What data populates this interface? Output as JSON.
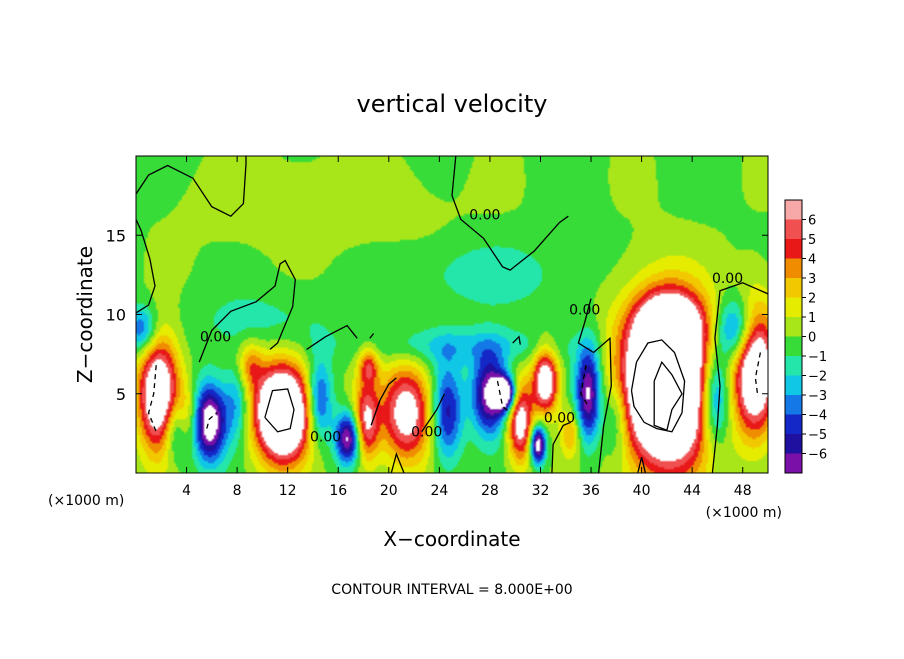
{
  "chart_data": {
    "type": "heatmap",
    "title": "vertical velocity",
    "xlabel": "X−coordinate",
    "ylabel": "Z−coordinate",
    "x_unit_left": "(×1000 m)",
    "x_unit_right": "(×1000 m)",
    "footer": "CONTOUR INTERVAL = 8.000E+00",
    "xlim": [
      0,
      50
    ],
    "ylim": [
      0,
      20
    ],
    "x_ticks": [
      4,
      8,
      12,
      16,
      20,
      24,
      28,
      32,
      36,
      40,
      44,
      48
    ],
    "y_ticks": [
      5,
      10,
      15
    ],
    "colorbar": {
      "labels": [
        "6",
        "5",
        "4",
        "3",
        "2",
        "1",
        "0",
        "−1",
        "−2",
        "−3",
        "−4",
        "−5",
        "−6"
      ],
      "colors": [
        "#f7a8a8",
        "#f05050",
        "#e81818",
        "#f08c00",
        "#f2c800",
        "#e6ec00",
        "#a8e61a",
        "#38dc38",
        "#24e6aa",
        "#10c8e6",
        "#1478e6",
        "#1428c8",
        "#2010a0",
        "#7a10a8"
      ]
    },
    "contour_labels": [
      {
        "text": "0.00",
        "x": 27.6,
        "y": 16.0
      },
      {
        "text": "0.00",
        "x": 46.8,
        "y": 12.0
      },
      {
        "text": "0.00",
        "x": 35.5,
        "y": 10.0
      },
      {
        "text": "0.00",
        "x": 6.3,
        "y": 8.3
      },
      {
        "text": "0.00",
        "x": 15.0,
        "y": 2.0
      },
      {
        "text": "0.00",
        "x": 23.0,
        "y": 2.3
      },
      {
        "text": "0.00",
        "x": 33.5,
        "y": 3.2
      }
    ],
    "features": [
      {
        "x": 1.8,
        "y": 5.0,
        "v": 9,
        "rx": 1.6,
        "ry": 3.5
      },
      {
        "x": 49.0,
        "y": 6.5,
        "v": 9,
        "rx": 1.6,
        "ry": 4.0
      },
      {
        "x": 42.0,
        "y": 5.5,
        "v": 14,
        "rx": 3.5,
        "ry": 5.0
      },
      {
        "x": 42.2,
        "y": 9.3,
        "v": 6,
        "rx": 2.5,
        "ry": 2.0
      },
      {
        "x": 11.6,
        "y": 3.8,
        "v": 12,
        "rx": 2.2,
        "ry": 3.0
      },
      {
        "x": 5.8,
        "y": 3.2,
        "v": -8,
        "rx": 1.3,
        "ry": 2.4
      },
      {
        "x": 4.0,
        "y": 3.5,
        "v": 3,
        "rx": 1.0,
        "ry": 2.0
      },
      {
        "x": 3.2,
        "y": 2.8,
        "v": -4,
        "rx": 1.0,
        "ry": 2.0
      },
      {
        "x": 8.0,
        "y": 4.5,
        "v": -3,
        "rx": 1.0,
        "ry": 2.5
      },
      {
        "x": 9.0,
        "y": 6.8,
        "v": 3,
        "rx": 1.0,
        "ry": 1.5
      },
      {
        "x": 14.5,
        "y": 4.5,
        "v": -5,
        "rx": 1.0,
        "ry": 2.5
      },
      {
        "x": 16.8,
        "y": 2.2,
        "v": -7,
        "rx": 1.0,
        "ry": 1.6
      },
      {
        "x": 18.2,
        "y": 3.2,
        "v": 6,
        "rx": 1.0,
        "ry": 2.5
      },
      {
        "x": 18.4,
        "y": 6.8,
        "v": 4,
        "rx": 0.8,
        "ry": 1.2
      },
      {
        "x": 21.4,
        "y": 3.8,
        "v": 7,
        "rx": 2.0,
        "ry": 3.0
      },
      {
        "x": 24.6,
        "y": 3.8,
        "v": -5,
        "rx": 1.2,
        "ry": 3.0
      },
      {
        "x": 28.0,
        "y": 5.0,
        "v": -7,
        "rx": 1.4,
        "ry": 2.5
      },
      {
        "x": 29.2,
        "y": 5.0,
        "v": -9,
        "rx": 0.8,
        "ry": 1.0
      },
      {
        "x": 30.4,
        "y": 3.2,
        "v": 7,
        "rx": 1.0,
        "ry": 2.5
      },
      {
        "x": 32.4,
        "y": 5.8,
        "v": 8,
        "rx": 1.0,
        "ry": 2.0
      },
      {
        "x": 31.8,
        "y": 1.8,
        "v": -8,
        "rx": 0.6,
        "ry": 1.2
      },
      {
        "x": 35.8,
        "y": 5.0,
        "v": -7,
        "rx": 1.0,
        "ry": 3.0
      },
      {
        "x": 34.4,
        "y": 2.5,
        "v": 3,
        "rx": 0.8,
        "ry": 1.5
      },
      {
        "x": 38.0,
        "y": 3.5,
        "v": -3,
        "rx": 1.0,
        "ry": 2.5
      },
      {
        "x": 45.8,
        "y": 4.8,
        "v": -6,
        "rx": 1.2,
        "ry": 3.0
      },
      {
        "x": 47.5,
        "y": 9.0,
        "v": -5,
        "rx": 1.6,
        "ry": 2.0
      },
      {
        "x": 0.5,
        "y": 9.0,
        "v": -4,
        "rx": 1.2,
        "ry": 1.5
      },
      {
        "x": 25.5,
        "y": 8.0,
        "v": -2,
        "rx": 8.0,
        "ry": 1.2
      },
      {
        "x": 28.0,
        "y": 12.5,
        "v": -1.5,
        "rx": 6.0,
        "ry": 2.0
      },
      {
        "x": 10.0,
        "y": 9.5,
        "v": -1.2,
        "rx": 6.0,
        "ry": 2.0
      },
      {
        "x": 14.0,
        "y": 17.0,
        "v": 1,
        "rx": 9.0,
        "ry": 2.5
      }
    ],
    "contours": [
      {
        "points": [
          [
            0,
            17.6
          ],
          [
            1,
            18.8
          ],
          [
            2.5,
            19.4
          ],
          [
            4.5,
            18.6
          ],
          [
            6,
            16.8
          ],
          [
            7.5,
            16.2
          ],
          [
            8.5,
            17.0
          ],
          [
            8.7,
            19.5
          ],
          [
            8.7,
            20
          ]
        ],
        "dashed": false
      },
      {
        "points": [
          [
            0,
            16
          ],
          [
            0.4,
            15.3
          ],
          [
            1.1,
            13.5
          ],
          [
            1.5,
            11.8
          ],
          [
            1.0,
            10.6
          ],
          [
            0,
            10.1
          ]
        ],
        "dashed": false
      },
      {
        "points": [
          [
            25.3,
            20
          ],
          [
            25.0,
            17.5
          ],
          [
            25.7,
            16.0
          ],
          [
            27.5,
            14.8
          ],
          [
            29.0,
            13.0
          ],
          [
            29.6,
            12.8
          ],
          [
            31.5,
            14.0
          ],
          [
            33.5,
            15.8
          ],
          [
            34.2,
            16.2
          ]
        ],
        "dashed": false
      },
      {
        "points": [
          [
            50,
            11.3
          ],
          [
            48.0,
            12.0
          ],
          [
            46.2,
            11.5
          ],
          [
            45.8,
            8.5
          ],
          [
            46.2,
            5.5
          ],
          [
            46.0,
            3.0
          ],
          [
            45.6,
            0
          ]
        ],
        "dashed": false
      },
      {
        "points": [
          [
            36.0,
            11.0
          ],
          [
            35.5,
            9.5
          ],
          [
            35.0,
            8.2
          ],
          [
            36.2,
            7.6
          ],
          [
            37.5,
            8.5
          ],
          [
            37.6,
            5.5
          ],
          [
            37.0,
            3.0
          ],
          [
            36.6,
            0
          ]
        ],
        "dashed": false
      },
      {
        "points": [
          [
            5.0,
            7.0
          ],
          [
            6.0,
            9.0
          ],
          [
            7.5,
            10.2
          ],
          [
            9.5,
            10.8
          ],
          [
            11.0,
            11.8
          ],
          [
            11.4,
            13.2
          ],
          [
            11.8,
            13.4
          ],
          [
            12.6,
            12.2
          ],
          [
            12.4,
            10.5
          ],
          [
            11.2,
            8.2
          ],
          [
            10.6,
            7.8
          ]
        ],
        "dashed": false
      },
      {
        "points": [
          [
            13.5,
            7.8
          ],
          [
            15.0,
            8.6
          ],
          [
            16.7,
            9.3
          ],
          [
            17.5,
            8.5
          ]
        ],
        "dashed": false
      },
      {
        "points": [
          [
            39.2,
            5.2
          ],
          [
            39.6,
            7.0
          ],
          [
            40.5,
            8.2
          ],
          [
            41.6,
            8.4
          ],
          [
            42.6,
            7.6
          ],
          [
            43.4,
            5.8
          ],
          [
            43.2,
            3.8
          ],
          [
            42.4,
            2.6
          ],
          [
            41.2,
            2.8
          ],
          [
            40.2,
            3.2
          ],
          [
            39.4,
            4.2
          ],
          [
            39.2,
            5.2
          ]
        ],
        "dashed": false
      },
      {
        "points": [
          [
            41.0,
            5.8
          ],
          [
            41.6,
            7.0
          ],
          [
            42.4,
            6.2
          ],
          [
            43.2,
            5.0
          ],
          [
            42.4,
            4.0
          ],
          [
            42.0,
            2.7
          ],
          [
            41.0,
            3.0
          ],
          [
            41.0,
            5.8
          ]
        ],
        "dashed": false
      },
      {
        "points": [
          [
            10.2,
            3.5
          ],
          [
            10.8,
            5.2
          ],
          [
            12.0,
            5.3
          ],
          [
            12.5,
            4.0
          ],
          [
            12.2,
            2.8
          ],
          [
            11.2,
            2.6
          ],
          [
            10.2,
            3.5
          ]
        ],
        "dashed": false
      },
      {
        "points": [
          [
            1.6,
            6.8
          ],
          [
            1.4,
            5.0
          ],
          [
            1.0,
            3.8
          ],
          [
            1.6,
            2.6
          ]
        ],
        "dashed": true
      },
      {
        "points": [
          [
            49.4,
            7.6
          ],
          [
            49.0,
            6.0
          ],
          [
            49.2,
            4.8
          ]
        ],
        "dashed": true
      },
      {
        "points": [
          [
            28.6,
            5.8
          ],
          [
            29.0,
            4.2
          ],
          [
            29.6,
            3.8
          ]
        ],
        "dashed": true
      },
      {
        "points": [
          [
            35.6,
            6.8
          ],
          [
            35.2,
            5.0
          ],
          [
            35.8,
            4.2
          ]
        ],
        "dashed": true
      },
      {
        "points": [
          [
            5.6,
            2.8
          ],
          [
            5.8,
            3.4
          ],
          [
            6.4,
            3.8
          ]
        ],
        "dashed": true
      },
      {
        "points": [
          [
            18.6,
            3.0
          ],
          [
            19.3,
            4.6
          ],
          [
            20.0,
            5.6
          ],
          [
            20.6,
            6.0
          ]
        ],
        "dashed": false
      },
      {
        "points": [
          [
            22.6,
            2.6
          ],
          [
            23.8,
            4.0
          ],
          [
            24.4,
            5.0
          ]
        ],
        "dashed": false
      },
      {
        "points": [
          [
            32.9,
            0
          ],
          [
            33.0,
            1.8
          ],
          [
            33.8,
            3.0
          ],
          [
            34.4,
            3.2
          ]
        ],
        "dashed": false
      },
      {
        "points": [
          [
            20.2,
            0
          ],
          [
            20.6,
            1.2
          ],
          [
            21.2,
            0
          ]
        ],
        "dashed": false
      },
      {
        "points": [
          [
            39.7,
            0
          ],
          [
            40.0,
            1.0
          ],
          [
            40.3,
            0
          ]
        ],
        "dashed": false
      },
      {
        "points": [
          [
            29.8,
            8.2
          ],
          [
            30.3,
            8.6
          ],
          [
            30.4,
            8.1
          ]
        ],
        "dashed": false
      },
      {
        "points": [
          [
            18.5,
            8.5
          ],
          [
            18.8,
            8.8
          ]
        ],
        "dashed": false
      }
    ]
  }
}
